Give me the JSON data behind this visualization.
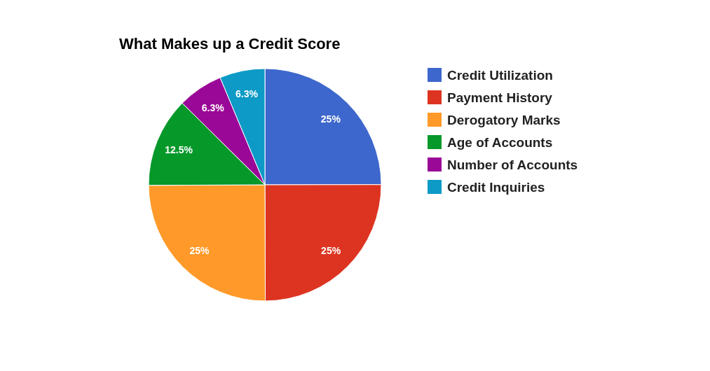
{
  "chart_data": {
    "type": "pie",
    "title": "What Makes up a Credit Score",
    "categories": [
      "Credit Utilization",
      "Payment History",
      "Derogatory Marks",
      "Age of Accounts",
      "Number of Accounts",
      "Credit Inquiries"
    ],
    "values": [
      25,
      25,
      25,
      12.5,
      6.3,
      6.3
    ],
    "colors": [
      "#3d67cc",
      "#dd3421",
      "#ff9a2a",
      "#07982a",
      "#9a0897",
      "#0d9ac6"
    ],
    "value_labels": [
      "25%",
      "25%",
      "25%",
      "12.5%",
      "6.3%",
      "6.3%"
    ],
    "legend": "right"
  }
}
